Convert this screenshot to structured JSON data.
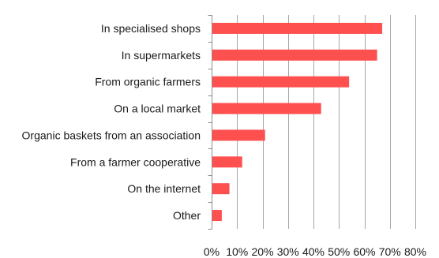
{
  "chart_data": {
    "type": "bar",
    "orientation": "horizontal",
    "categories": [
      "In specialised shops",
      "In supermarkets",
      "From organic farmers",
      "On a local market",
      "Organic baskets from an association",
      "From a farmer cooperative",
      "On the internet",
      "Other"
    ],
    "values": [
      67,
      65,
      54,
      43,
      21,
      12,
      7,
      4
    ],
    "value_unit": "%",
    "xlim": [
      0,
      80
    ],
    "xticks": [
      0,
      10,
      20,
      30,
      40,
      50,
      60,
      70,
      80
    ],
    "xtick_labels": [
      "0%",
      "10%",
      "20%",
      "30%",
      "40%",
      "50%",
      "60%",
      "70%",
      "80%"
    ],
    "title": "",
    "xlabel": "",
    "ylabel": "",
    "grid": "vertical",
    "legend": "none",
    "bar_color": "#ff5050"
  }
}
